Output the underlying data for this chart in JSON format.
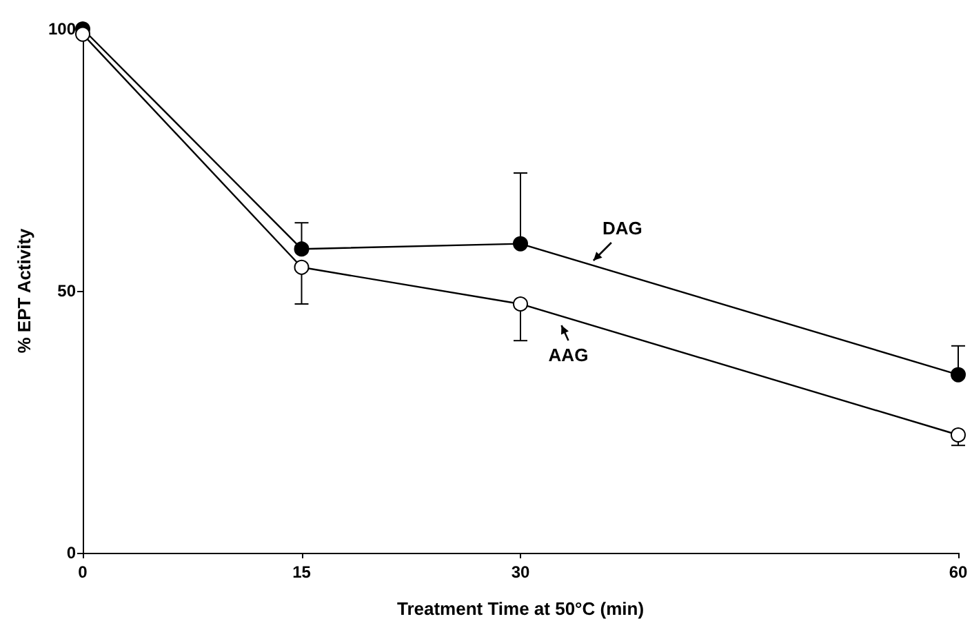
{
  "chart_data": {
    "type": "line",
    "xlabel": "Treatment Time at 50°C (min)",
    "ylabel": "% EPT Activity",
    "x": [
      0,
      15,
      30,
      60
    ],
    "xlim": [
      0,
      60
    ],
    "xticks": [
      0,
      15,
      30,
      60
    ],
    "ylim": [
      0,
      100
    ],
    "yticks": [
      0,
      50,
      100
    ],
    "series": [
      {
        "color": "#000000",
        "values": [
          100,
          58,
          59,
          34
        ],
        "errors": [
          null,
          [
            58,
            63
          ],
          [
            59,
            72.5
          ],
          [
            34,
            39.5
          ]
        ]
      },
      {
        "color": "#ffffff",
        "values": [
          99,
          54.5,
          47.5,
          22.5
        ],
        "errors": [
          null,
          [
            47.5,
            54.5
          ],
          [
            40.5,
            47.5
          ],
          [
            20.5,
            22.5
          ]
        ]
      }
    ],
    "annotations": [
      {
        "text": "DAG",
        "x": 35,
        "y": 55
      },
      {
        "text": "AAG",
        "x": 33,
        "y": 45
      }
    ],
    "marker": "circle"
  }
}
